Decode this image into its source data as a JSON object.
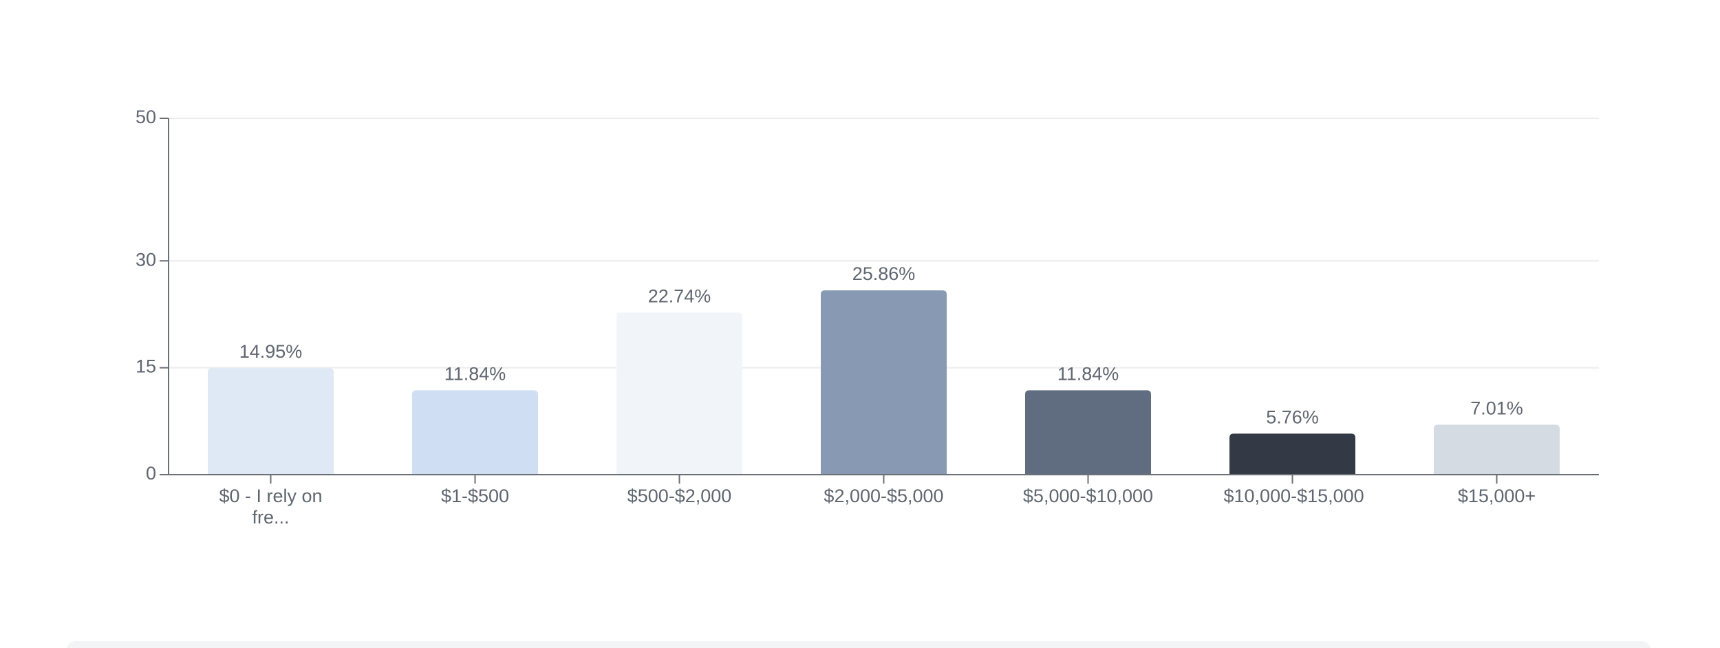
{
  "chart_data": {
    "type": "bar",
    "categories": [
      "$0 - I rely on fre...",
      "$1-$500",
      "$500-$2,000",
      "$2,000-$5,000",
      "$5,000-$10,000",
      "$10,000-$15,000",
      "$15,000+"
    ],
    "values": [
      14.95,
      11.84,
      22.74,
      25.86,
      11.84,
      5.76,
      7.01
    ],
    "value_labels": [
      "14.95%",
      "11.84%",
      "22.74%",
      "25.86%",
      "11.84%",
      "5.76%",
      "7.01%"
    ],
    "colors": [
      "#dfe9f6",
      "#cfdef3",
      "#f1f4f9",
      "#8799b3",
      "#606d80",
      "#343a45",
      "#d5dbe3"
    ],
    "ylim": [
      0,
      50
    ],
    "yticks": [
      0,
      15,
      30,
      50
    ],
    "grid": true
  }
}
